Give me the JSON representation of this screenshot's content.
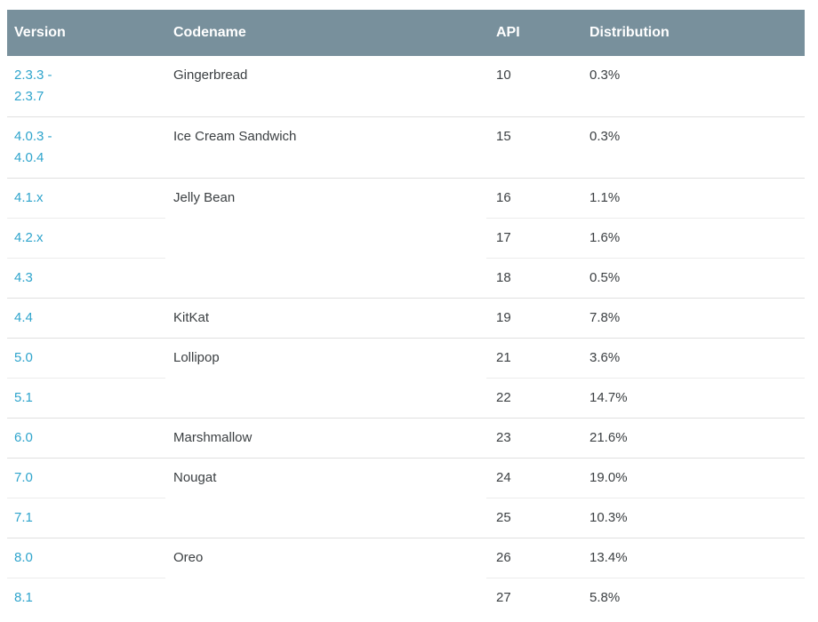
{
  "table": {
    "headers": {
      "version": "Version",
      "codename": "Codename",
      "api": "API",
      "distribution": "Distribution"
    },
    "groups": [
      {
        "codename": "Gingerbread",
        "rows": [
          {
            "version": "2.3.3 - 2.3.7",
            "api": "10",
            "distribution": "0.3%"
          }
        ]
      },
      {
        "codename": "Ice Cream Sandwich",
        "rows": [
          {
            "version": "4.0.3 - 4.0.4",
            "api": "15",
            "distribution": "0.3%"
          }
        ]
      },
      {
        "codename": "Jelly Bean",
        "rows": [
          {
            "version": "4.1.x",
            "api": "16",
            "distribution": "1.1%"
          },
          {
            "version": "4.2.x",
            "api": "17",
            "distribution": "1.6%"
          },
          {
            "version": "4.3",
            "api": "18",
            "distribution": "0.5%"
          }
        ]
      },
      {
        "codename": "KitKat",
        "rows": [
          {
            "version": "4.4",
            "api": "19",
            "distribution": "7.8%"
          }
        ]
      },
      {
        "codename": "Lollipop",
        "rows": [
          {
            "version": "5.0",
            "api": "21",
            "distribution": "3.6%"
          },
          {
            "version": "5.1",
            "api": "22",
            "distribution": "14.7%"
          }
        ]
      },
      {
        "codename": "Marshmallow",
        "rows": [
          {
            "version": "6.0",
            "api": "23",
            "distribution": "21.6%"
          }
        ]
      },
      {
        "codename": "Nougat",
        "rows": [
          {
            "version": "7.0",
            "api": "24",
            "distribution": "19.0%"
          },
          {
            "version": "7.1",
            "api": "25",
            "distribution": "10.3%"
          }
        ]
      },
      {
        "codename": "Oreo",
        "rows": [
          {
            "version": "8.0",
            "api": "26",
            "distribution": "13.4%"
          },
          {
            "version": "8.1",
            "api": "27",
            "distribution": "5.8%"
          }
        ]
      }
    ],
    "colors": {
      "header_bg": "#78909C",
      "header_text": "#FFFFFF",
      "version_link": "#2EA4CC",
      "body_text": "#3C4043",
      "divider": "#E0E0E0"
    }
  }
}
